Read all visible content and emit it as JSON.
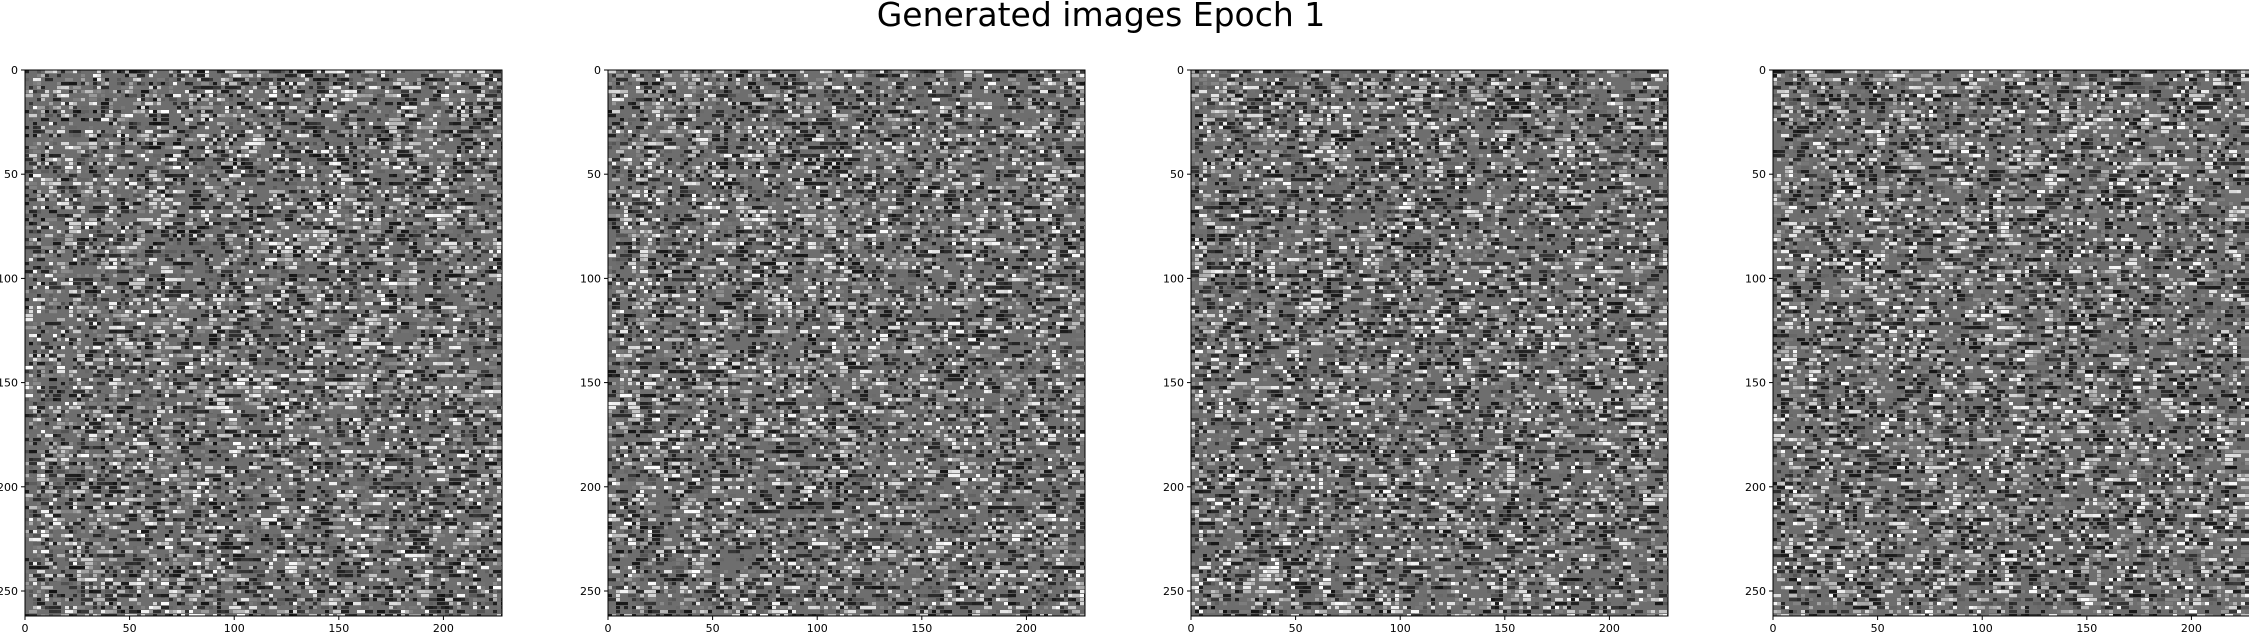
{
  "figure": {
    "title": "Generated images Epoch 1"
  },
  "chart_data": [
    {
      "type": "heatmap",
      "title": "",
      "xlabel": "",
      "ylabel": "",
      "colormap": "gray",
      "background_gray": "#6e6e6e",
      "xlim": [
        0,
        228
      ],
      "ylim": [
        0,
        262
      ],
      "y_inverted": true,
      "x_ticks": [
        0,
        50,
        100,
        150,
        200
      ],
      "y_ticks": [
        0,
        50,
        100,
        150,
        200,
        250
      ],
      "seed": 11
    },
    {
      "type": "heatmap",
      "title": "",
      "xlabel": "",
      "ylabel": "",
      "colormap": "gray",
      "background_gray": "#6e6e6e",
      "xlim": [
        0,
        228
      ],
      "ylim": [
        0,
        262
      ],
      "y_inverted": true,
      "x_ticks": [
        0,
        50,
        100,
        150,
        200
      ],
      "y_ticks": [
        0,
        50,
        100,
        150,
        200,
        250
      ],
      "seed": 23
    },
    {
      "type": "heatmap",
      "title": "",
      "xlabel": "",
      "ylabel": "",
      "colormap": "gray",
      "background_gray": "#6e6e6e",
      "xlim": [
        0,
        228
      ],
      "ylim": [
        0,
        262
      ],
      "y_inverted": true,
      "x_ticks": [
        0,
        50,
        100,
        150,
        200
      ],
      "y_ticks": [
        0,
        50,
        100,
        150,
        200,
        250
      ],
      "seed": 37
    },
    {
      "type": "heatmap",
      "title": "",
      "xlabel": "",
      "ylabel": "",
      "colormap": "gray",
      "background_gray": "#6e6e6e",
      "xlim": [
        0,
        228
      ],
      "ylim": [
        0,
        262
      ],
      "y_inverted": true,
      "x_ticks": [
        0,
        50,
        100,
        150,
        200
      ],
      "y_ticks": [
        0,
        50,
        100,
        150,
        200,
        250
      ],
      "seed": 53
    }
  ]
}
